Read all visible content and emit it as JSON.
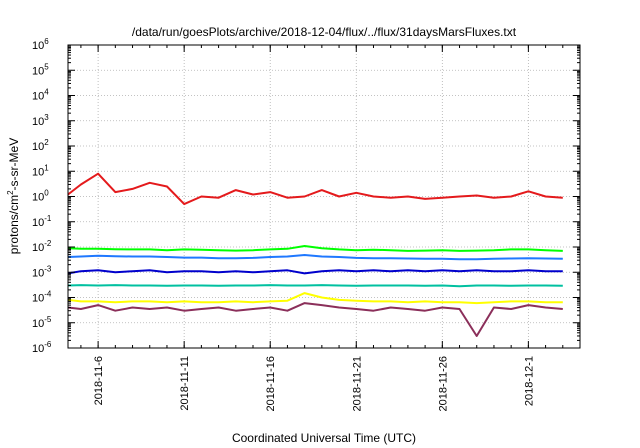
{
  "chart_data": {
    "type": "line",
    "title": "/data/run/goesPlots/archive/2018-12-04/flux/../flux/31daysMarsFluxes.txt",
    "xlabel": "Coordinated Universal Time (UTC)",
    "ylabel_parts": [
      "protons/cm",
      "2",
      "-s-sr-MeV"
    ],
    "x_range": [
      "2018-11-04T06:00",
      "2018-12-04T00:00"
    ],
    "x_ticks": [
      "2018-11-6",
      "2018-11-11",
      "2018-11-16",
      "2018-11-21",
      "2018-11-26",
      "2018-12-1"
    ],
    "y_scale": "log",
    "ylim": [
      1e-06,
      1000000.0
    ],
    "y_ticks": [
      {
        "base": "10",
        "exp": "-6"
      },
      {
        "base": "10",
        "exp": "-5"
      },
      {
        "base": "10",
        "exp": "-4"
      },
      {
        "base": "10",
        "exp": "-3"
      },
      {
        "base": "10",
        "exp": "-2"
      },
      {
        "base": "10",
        "exp": "-1"
      },
      {
        "base": "10",
        "exp": "0"
      },
      {
        "base": "10",
        "exp": "1"
      },
      {
        "base": "10",
        "exp": "2"
      },
      {
        "base": "10",
        "exp": "3"
      },
      {
        "base": "10",
        "exp": "4"
      },
      {
        "base": "10",
        "exp": "5"
      },
      {
        "base": "10",
        "exp": "6"
      }
    ],
    "grid": true,
    "legend": "none",
    "x": [
      "2018-11-04",
      "2018-11-05",
      "2018-11-06",
      "2018-11-07",
      "2018-11-08",
      "2018-11-09",
      "2018-11-10",
      "2018-11-11",
      "2018-11-12",
      "2018-11-13",
      "2018-11-14",
      "2018-11-15",
      "2018-11-16",
      "2018-11-17",
      "2018-11-18",
      "2018-11-19",
      "2018-11-20",
      "2018-11-21",
      "2018-11-22",
      "2018-11-23",
      "2018-11-24",
      "2018-11-25",
      "2018-11-26",
      "2018-11-27",
      "2018-11-28",
      "2018-11-29",
      "2018-11-30",
      "2018-12-01",
      "2018-12-02",
      "2018-12-03"
    ],
    "series": [
      {
        "color": "#e41a1c",
        "values": [
          1.2,
          3.0,
          8.0,
          1.5,
          2.0,
          3.5,
          2.5,
          0.5,
          1.0,
          0.9,
          1.8,
          1.2,
          1.5,
          0.9,
          1.0,
          1.8,
          1.0,
          1.4,
          1.0,
          0.9,
          1.0,
          0.8,
          0.9,
          1.0,
          1.1,
          0.9,
          1.0,
          1.6,
          1.0,
          0.9
        ]
      },
      {
        "color": "#00ff00",
        "values": [
          0.009,
          0.0085,
          0.0085,
          0.0082,
          0.008,
          0.008,
          0.0075,
          0.008,
          0.0078,
          0.0075,
          0.0072,
          0.0075,
          0.008,
          0.0085,
          0.011,
          0.009,
          0.008,
          0.0075,
          0.0078,
          0.0075,
          0.007,
          0.0072,
          0.0075,
          0.007,
          0.0072,
          0.0075,
          0.008,
          0.008,
          0.0075,
          0.007
        ]
      },
      {
        "color": "#1f78ff",
        "values": [
          0.004,
          0.0042,
          0.0045,
          0.0043,
          0.0042,
          0.0042,
          0.004,
          0.0038,
          0.0038,
          0.0036,
          0.0036,
          0.0037,
          0.004,
          0.0042,
          0.0048,
          0.0042,
          0.004,
          0.0037,
          0.0036,
          0.0036,
          0.0035,
          0.0034,
          0.0034,
          0.0033,
          0.0033,
          0.0034,
          0.0035,
          0.0036,
          0.0035,
          0.0034
        ]
      },
      {
        "color": "#0000cc",
        "values": [
          0.0009,
          0.0011,
          0.0012,
          0.001,
          0.0011,
          0.0012,
          0.001,
          0.0011,
          0.0011,
          0.001,
          0.0011,
          0.001,
          0.0011,
          0.0012,
          0.0009,
          0.0011,
          0.0012,
          0.0011,
          0.0012,
          0.0011,
          0.0012,
          0.0011,
          0.0012,
          0.0011,
          0.0012,
          0.0011,
          0.0011,
          0.0012,
          0.0011,
          0.0011
        ]
      },
      {
        "color": "#00c0a0",
        "values": [
          0.0003,
          0.00031,
          0.0003,
          0.00031,
          0.0003,
          0.0003,
          0.00029,
          0.0003,
          0.0003,
          0.00029,
          0.0003,
          0.0003,
          0.00031,
          0.0003,
          0.0003,
          0.00031,
          0.0003,
          0.00029,
          0.0003,
          0.0003,
          0.0003,
          0.00029,
          0.0003,
          0.00028,
          0.0003,
          0.0003,
          0.00029,
          0.0003,
          0.0003,
          0.00029
        ]
      },
      {
        "color": "#ffff00",
        "values": [
          8e-05,
          7e-05,
          7e-05,
          6.5e-05,
          7e-05,
          7e-05,
          6.5e-05,
          7e-05,
          6.5e-05,
          6.5e-05,
          7e-05,
          6.5e-05,
          7e-05,
          7.5e-05,
          0.00015,
          0.0001,
          8e-05,
          7.5e-05,
          7e-05,
          7e-05,
          6.5e-05,
          7e-05,
          6.5e-05,
          6.5e-05,
          6e-05,
          6.5e-05,
          7e-05,
          7e-05,
          6.5e-05,
          6.5e-05
        ]
      },
      {
        "color": "#8b2f5a",
        "values": [
          4e-05,
          3.5e-05,
          5e-05,
          3e-05,
          4e-05,
          3.5e-05,
          4e-05,
          3e-05,
          3.5e-05,
          4e-05,
          3e-05,
          3.5e-05,
          4e-05,
          3e-05,
          6e-05,
          5e-05,
          4e-05,
          3.5e-05,
          3e-05,
          4e-05,
          3.5e-05,
          3e-05,
          4e-05,
          3.5e-05,
          3e-06,
          4e-05,
          3.5e-05,
          5e-05,
          4e-05,
          3.5e-05
        ]
      }
    ]
  }
}
